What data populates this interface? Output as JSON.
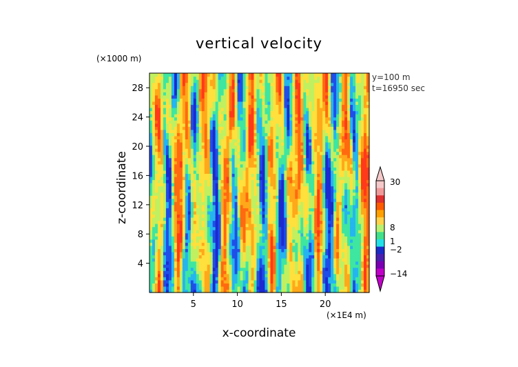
{
  "chart_data": {
    "type": "heatmap",
    "title": "vertical velocity",
    "xlabel": "x-coordinate",
    "ylabel": "z-coordinate",
    "x_unit": "(×1E4 m)",
    "z_unit": "(×1000 m)",
    "x_ticks": [
      5,
      10,
      15,
      20
    ],
    "z_ticks": [
      4,
      8,
      12,
      16,
      20,
      24,
      28
    ],
    "xlim": [
      0,
      25
    ],
    "zlim": [
      0,
      30
    ],
    "annotations": [
      "y=100 m",
      "t=16950 sec"
    ],
    "colorbar": {
      "labels": [
        "30",
        "8",
        "1",
        "−2",
        "−14"
      ],
      "levels": [
        30,
        8,
        1,
        -2,
        -14
      ],
      "colors": [
        "#f5c9c9",
        "#f09a9a",
        "#e03030",
        "#ff5a00",
        "#ffa000",
        "#ffd24a",
        "#b9f070",
        "#42e08a",
        "#22e0e8",
        "#1a2cc8",
        "#4a1fb0",
        "#7b00b4",
        "#c000c8"
      ]
    },
    "field_palette": [
      "#1c2ad0",
      "#1f4fe8",
      "#25b5ef",
      "#3ee6a0",
      "#c0f060",
      "#ffe03c",
      "#ffa81a",
      "#ff6a10",
      "#ff3a1a"
    ]
  }
}
